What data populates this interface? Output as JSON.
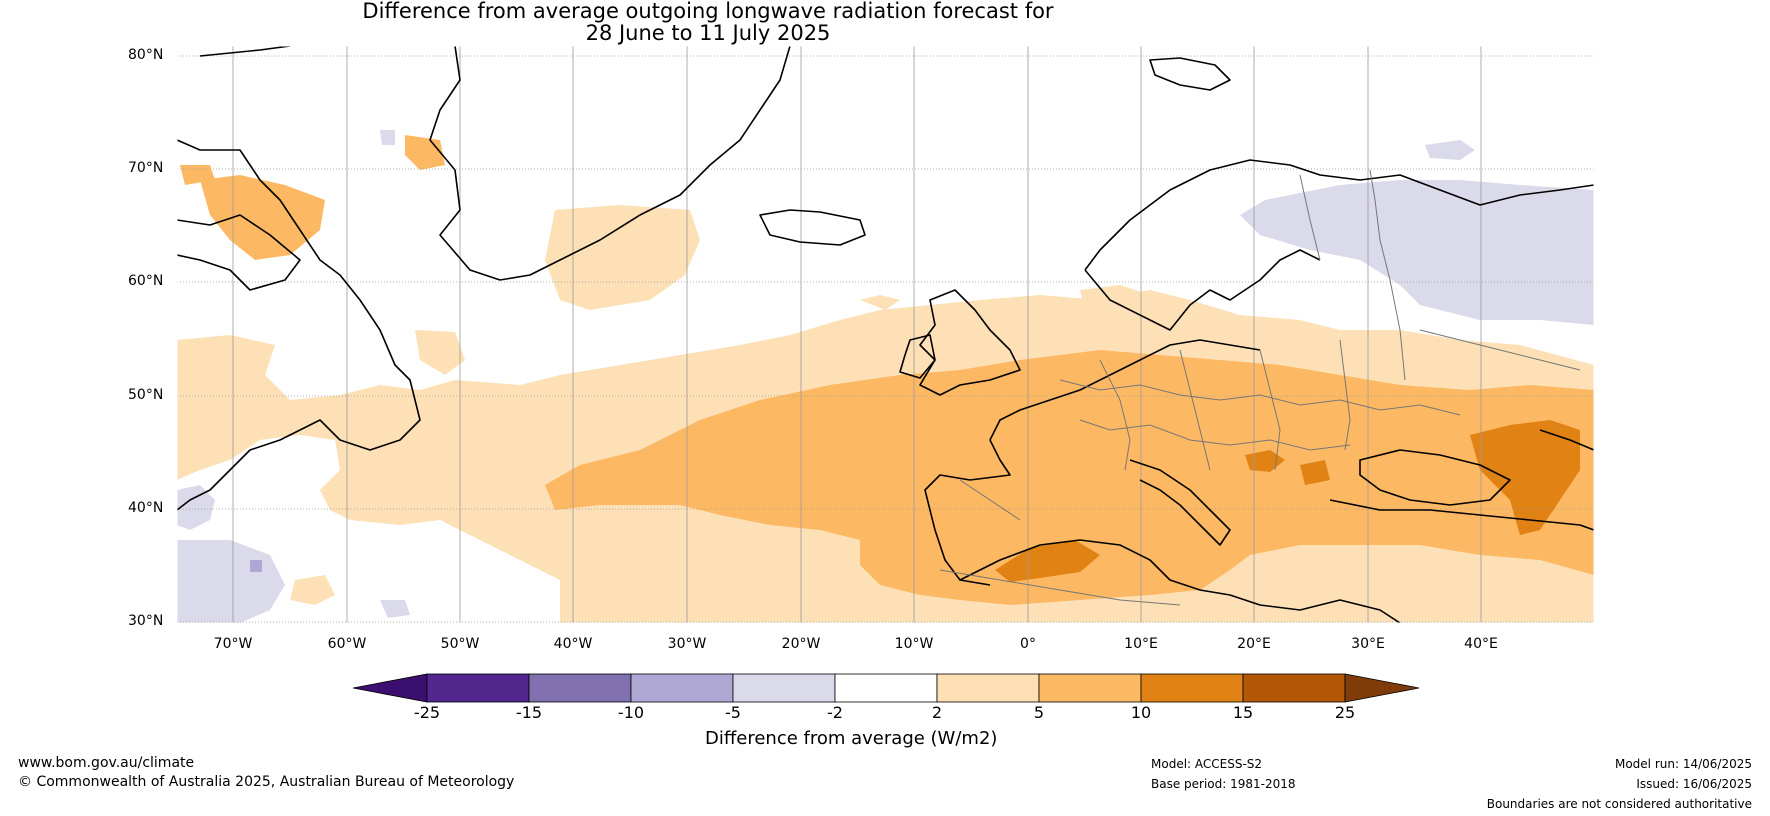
{
  "title_line1": "Difference from average outgoing longwave radiation forecast for",
  "title_line2": "28 June to 11 July 2025",
  "lat_labels": [
    "80°N",
    "70°N",
    "60°N",
    "50°N",
    "40°N",
    "30°N"
  ],
  "lon_labels": [
    "70°W",
    "60°W",
    "50°W",
    "40°W",
    "30°W",
    "20°W",
    "10°W",
    "0°",
    "10°E",
    "20°E",
    "30°E",
    "40°E"
  ],
  "colorbar": {
    "ticks": [
      "-25",
      "-15",
      "-10",
      "-5",
      "-2",
      "2",
      "5",
      "10",
      "15",
      "25"
    ],
    "colors": [
      "#3b0f6f",
      "#54278f",
      "#8070b0",
      "#b0a8d4",
      "#dadaeb",
      "#ffffff",
      "#fee0b6",
      "#fdb863",
      "#e08214",
      "#b35806",
      "#7f3b08"
    ],
    "label": "Difference from average (W/m2)"
  },
  "map_colors": {
    "light_orange": "#fee0b6",
    "medium_orange": "#fdb863",
    "dark_orange": "#e08214",
    "light_purple": "#dadaeb",
    "medium_purple": "#b0a8d4"
  },
  "footer": {
    "website": "www.bom.gov.au/climate",
    "copyright": "© Commonwealth of Australia 2025, Australian Bureau of Meteorology",
    "model": "Model: ACCESS-S2",
    "base_period": "Base period: 1981-2018",
    "model_run": "Model run: 14/06/2025",
    "issued": "Issued: 16/06/2025",
    "disclaimer": "Boundaries are not considered authoritative"
  }
}
